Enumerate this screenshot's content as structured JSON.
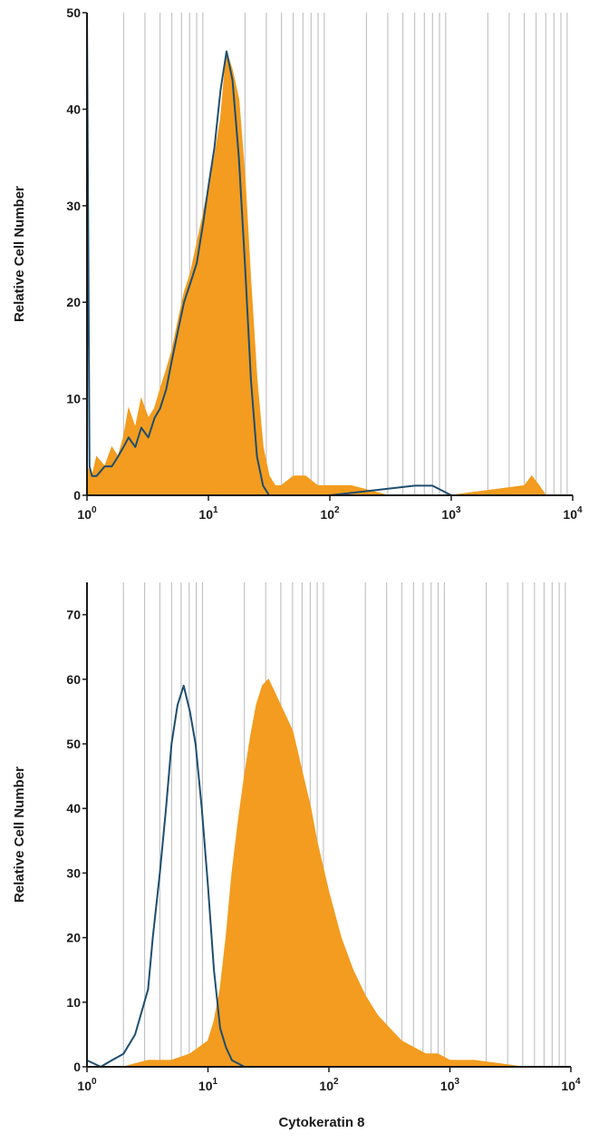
{
  "chart_data": [
    {
      "type": "area",
      "title": "",
      "xlabel": "",
      "ylabel": "Relative Cell Number",
      "xscale": "log",
      "xlim": [
        1,
        10000
      ],
      "ylim": [
        0,
        50
      ],
      "yticks": [
        0,
        10,
        20,
        30,
        40,
        50
      ],
      "xtick_base": "10",
      "xtick_exponents": [
        "0",
        "1",
        "2",
        "3",
        "4"
      ],
      "grid": "vertical",
      "colors": {
        "filled": "#f39c1f",
        "outline": "#1d4e6f"
      },
      "series": [
        {
          "style": "filled",
          "x": [
            1.0,
            1.1,
            1.2,
            1.4,
            1.6,
            1.8,
            2.0,
            2.2,
            2.5,
            2.8,
            3.2,
            3.6,
            4.0,
            4.5,
            5.0,
            5.6,
            6.3,
            7.1,
            8.0,
            9.0,
            10.0,
            11.2,
            12.6,
            14.1,
            15.8,
            17.8,
            20.0,
            22.4,
            25.1,
            28.2,
            31.6,
            35.5,
            39.8,
            50.1,
            63.1,
            79.4,
            100,
            150,
            300,
            1000,
            4000,
            4600,
            5300,
            6000,
            10000
          ],
          "y": [
            3,
            2,
            4,
            3,
            5,
            4,
            6,
            9,
            7,
            10,
            8,
            9,
            11,
            13,
            15,
            18,
            21,
            23,
            26,
            29,
            32,
            35,
            39,
            46,
            44,
            41,
            33,
            22,
            12,
            5,
            2,
            1,
            1,
            2,
            2,
            1,
            1,
            1,
            0,
            0,
            1,
            2,
            1,
            0,
            0
          ]
        },
        {
          "style": "outline",
          "x": [
            1.0,
            1.05,
            1.1,
            1.2,
            1.4,
            1.6,
            1.8,
            2.0,
            2.2,
            2.5,
            2.8,
            3.2,
            3.6,
            4.0,
            4.5,
            5.0,
            5.6,
            6.3,
            7.1,
            8.0,
            9.0,
            10.0,
            11.2,
            12.6,
            14.1,
            15.8,
            17.8,
            20.0,
            22.4,
            25.1,
            28.2,
            31.6,
            35.5,
            39.8,
            50.1,
            100,
            500,
            700,
            1000,
            10000
          ],
          "y": [
            50,
            3,
            2,
            2,
            3,
            3,
            4,
            5,
            6,
            5,
            7,
            6,
            8,
            9,
            11,
            14,
            17,
            20,
            22,
            24,
            28,
            32,
            36,
            42,
            46,
            43,
            35,
            24,
            12,
            4,
            1,
            0,
            0,
            0,
            0,
            0,
            1,
            1,
            0,
            0
          ]
        }
      ]
    },
    {
      "type": "area",
      "title": "",
      "xlabel": "Cytokeratin 8",
      "ylabel": "Relative Cell Number",
      "xscale": "log",
      "xlim": [
        1,
        10000
      ],
      "ylim": [
        0,
        75
      ],
      "yticks": [
        0,
        10,
        20,
        30,
        40,
        50,
        60,
        70
      ],
      "xtick_base": "10",
      "xtick_exponents": [
        "0",
        "1",
        "2",
        "3",
        "4"
      ],
      "grid": "vertical",
      "colors": {
        "filled": "#f39c1f",
        "outline": "#1d4e6f"
      },
      "series": [
        {
          "style": "filled",
          "x": [
            1.0,
            2.0,
            3.2,
            5.0,
            7.1,
            10.0,
            11.2,
            12.6,
            14.1,
            15.8,
            17.8,
            20.0,
            22.4,
            25.1,
            28.2,
            31.6,
            35.5,
            39.8,
            44.7,
            50.1,
            56.2,
            63.1,
            70.8,
            79.4,
            89.1,
            100,
            126,
            158,
            200,
            251,
            316,
            398,
            501,
            631,
            794,
            1000,
            1585,
            2512,
            3981,
            10000
          ],
          "y": [
            0,
            0,
            1,
            1,
            2,
            4,
            7,
            12,
            20,
            30,
            38,
            45,
            51,
            56,
            59,
            60,
            58,
            56,
            54,
            52,
            48,
            44,
            40,
            35,
            31,
            27,
            20,
            15,
            11,
            8,
            6,
            4,
            3,
            2,
            2,
            1,
            1,
            0.5,
            0,
            0
          ]
        },
        {
          "style": "outline",
          "x": [
            1.0,
            1.3,
            1.6,
            2.0,
            2.5,
            3.2,
            3.5,
            4.0,
            4.5,
            5.0,
            5.6,
            6.3,
            7.1,
            7.9,
            8.9,
            10.0,
            11.2,
            12.6,
            14.1,
            15.8,
            17.8,
            20.0,
            50.0,
            100,
            1000,
            10000
          ],
          "y": [
            1,
            0,
            1,
            2,
            5,
            12,
            20,
            30,
            40,
            50,
            56,
            59,
            55,
            50,
            40,
            28,
            15,
            6,
            3,
            1,
            0.5,
            0,
            0,
            0,
            0,
            0
          ]
        }
      ]
    }
  ]
}
